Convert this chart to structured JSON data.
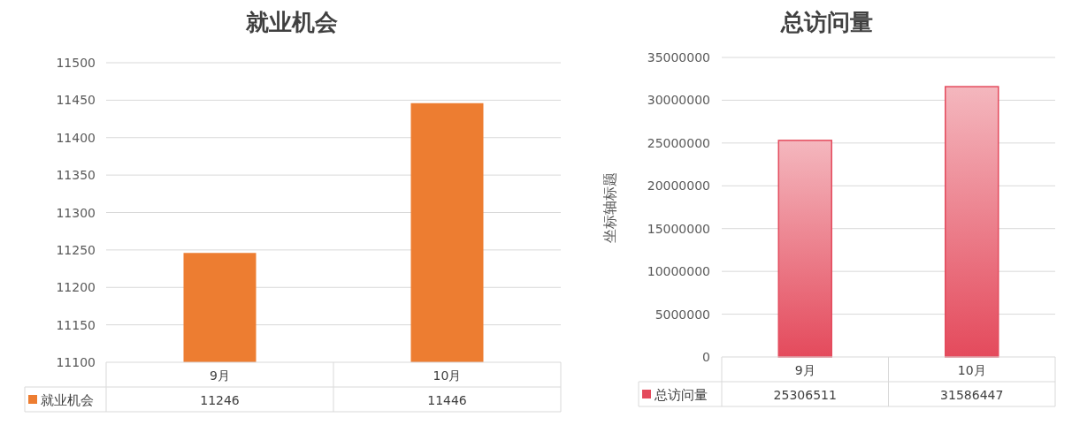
{
  "chart_data": [
    {
      "type": "bar",
      "title": "就业机会",
      "categories": [
        "9月",
        "10月"
      ],
      "series": [
        {
          "name": "就业机会",
          "color": "#ed7d31",
          "values": [
            11246,
            11446
          ]
        }
      ],
      "ylim": [
        11100,
        11500
      ],
      "yticks": [
        11100,
        11150,
        11200,
        11250,
        11300,
        11350,
        11400,
        11450,
        11500
      ],
      "grid": "y",
      "legend": "bottom",
      "data_labels": true
    },
    {
      "type": "bar",
      "title": "总访问量",
      "ylabel": "坐标轴标题",
      "categories": [
        "9月",
        "10月"
      ],
      "series": [
        {
          "name": "总访问量",
          "color": "#e44a5c",
          "values": [
            25306511,
            31586447
          ]
        }
      ],
      "ylim": [
        0,
        35000000
      ],
      "yticks": [
        0,
        5000000,
        10000000,
        15000000,
        20000000,
        25000000,
        30000000,
        35000000
      ],
      "grid": "y",
      "legend": "bottom",
      "data_labels": true
    }
  ]
}
